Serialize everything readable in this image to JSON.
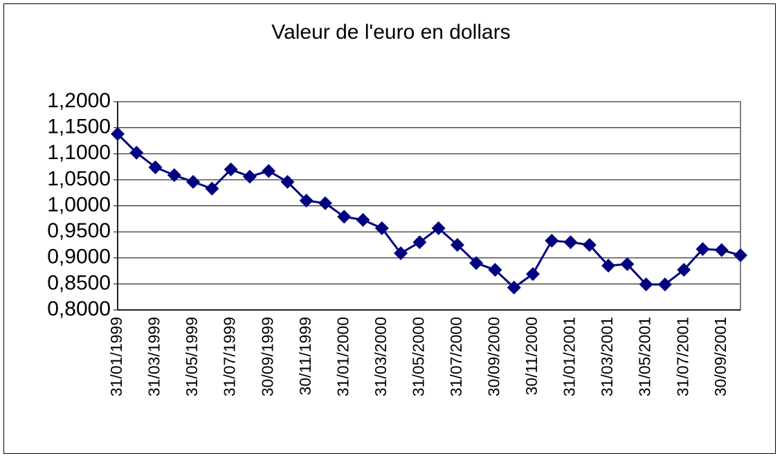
{
  "chart_data": {
    "type": "line",
    "title": "Valeur de l'euro en dollars",
    "categories": [
      "31/01/1999",
      null,
      "31/03/1999",
      null,
      "31/05/1999",
      null,
      "31/07/1999",
      null,
      "30/09/1999",
      null,
      "30/11/1999",
      null,
      "31/01/2000",
      null,
      "31/03/2000",
      null,
      "31/05/2000",
      null,
      "31/07/2000",
      null,
      "30/09/2000",
      null,
      "30/11/2000",
      null,
      "31/01/2001",
      null,
      "31/03/2001",
      null,
      "31/05/2001",
      null,
      "31/07/2001",
      null,
      "30/09/2001",
      null
    ],
    "values": [
      1.138,
      1.102,
      1.074,
      1.059,
      1.046,
      1.033,
      1.07,
      1.056,
      1.067,
      1.046,
      1.01,
      1.005,
      0.979,
      0.973,
      0.957,
      0.909,
      0.93,
      0.957,
      0.925,
      0.89,
      0.877,
      0.843,
      0.869,
      0.933,
      0.93,
      0.925,
      0.885,
      0.888,
      0.849,
      0.849,
      0.877,
      0.917,
      0.915,
      0.905
    ],
    "color": "#000080",
    "ylim": [
      0.8,
      1.2
    ],
    "yticks": [
      {
        "value": 0.8,
        "label": "0,8000"
      },
      {
        "value": 0.85,
        "label": "0,8500"
      },
      {
        "value": 0.9,
        "label": "0,9000"
      },
      {
        "value": 0.95,
        "label": "0,9500"
      },
      {
        "value": 1.0,
        "label": "1,0000"
      },
      {
        "value": 1.05,
        "label": "1,0500"
      },
      {
        "value": 1.1,
        "label": "1,1000"
      },
      {
        "value": 1.15,
        "label": "1,1500"
      },
      {
        "value": 1.2,
        "label": "1,2000"
      }
    ],
    "grid": true
  }
}
